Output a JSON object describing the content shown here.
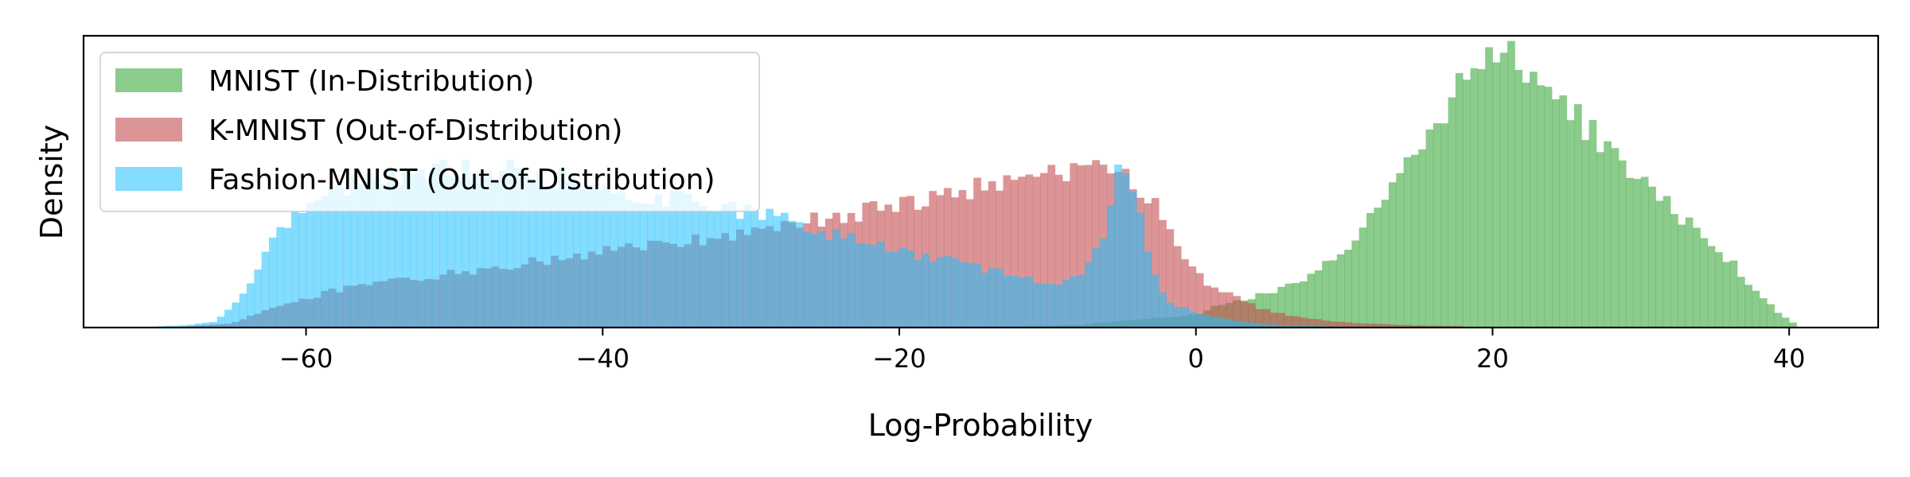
{
  "chart_data": {
    "type": "histogram",
    "xlabel": "Log-Probability",
    "ylabel": "Density",
    "xlim": [
      -75,
      46
    ],
    "ylim": [
      0,
      0.07
    ],
    "x_ticks": [
      -60,
      -40,
      -20,
      0,
      20,
      40
    ],
    "x_tick_labels": [
      "−60",
      "−40",
      "−20",
      "0",
      "20",
      "40"
    ],
    "y_ticks_shown": false,
    "grid": false,
    "legend_position": "upper-left",
    "series": [
      {
        "name": "MNIST (In-Distribution)",
        "color": "#2ca02c",
        "alpha": 0.55,
        "bins": [
          [
            -12,
            0.0003
          ],
          [
            -8,
            0.0006
          ],
          [
            -4,
            0.002
          ],
          [
            0,
            0.003
          ],
          [
            2,
            0.006
          ],
          [
            4,
            0.0075
          ],
          [
            6,
            0.0095
          ],
          [
            8,
            0.0135
          ],
          [
            10,
            0.019
          ],
          [
            12,
            0.027
          ],
          [
            14,
            0.037
          ],
          [
            16,
            0.048
          ],
          [
            18,
            0.058
          ],
          [
            19,
            0.063
          ],
          [
            20,
            0.068
          ],
          [
            21,
            0.066
          ],
          [
            22,
            0.063
          ],
          [
            24,
            0.056
          ],
          [
            26,
            0.049
          ],
          [
            28,
            0.042
          ],
          [
            30,
            0.035
          ],
          [
            32,
            0.029
          ],
          [
            34,
            0.023
          ],
          [
            36,
            0.016
          ],
          [
            38,
            0.008
          ],
          [
            39.5,
            0.003
          ],
          [
            40.5,
            0.0006
          ]
        ]
      },
      {
        "name": "K-MNIST (Out-of-Distribution)",
        "color": "#c44e52",
        "alpha": 0.6,
        "bins": [
          [
            -68,
            0.0003
          ],
          [
            -65,
            0.001
          ],
          [
            -62,
            0.005
          ],
          [
            -58,
            0.009
          ],
          [
            -54,
            0.011
          ],
          [
            -50,
            0.013
          ],
          [
            -46,
            0.015
          ],
          [
            -42,
            0.017
          ],
          [
            -38,
            0.019
          ],
          [
            -34,
            0.021
          ],
          [
            -30,
            0.023
          ],
          [
            -26,
            0.0255
          ],
          [
            -22,
            0.028
          ],
          [
            -18,
            0.031
          ],
          [
            -14,
            0.034
          ],
          [
            -10,
            0.0365
          ],
          [
            -7,
            0.038
          ],
          [
            -5,
            0.036
          ],
          [
            -4,
            0.034
          ],
          [
            -3,
            0.031
          ],
          [
            -2,
            0.026
          ],
          [
            -1,
            0.019
          ],
          [
            0,
            0.013
          ],
          [
            1,
            0.01
          ],
          [
            2,
            0.0085
          ],
          [
            4,
            0.005
          ],
          [
            6,
            0.003
          ],
          [
            8,
            0.002
          ],
          [
            10,
            0.0012
          ],
          [
            14,
            0.0006
          ],
          [
            18,
            0.0003
          ]
        ]
      },
      {
        "name": "Fashion-MNIST (Out-of-Distribution)",
        "color": "#1fbfff",
        "alpha": 0.55,
        "bins": [
          [
            -70,
            0.0003
          ],
          [
            -68,
            0.0006
          ],
          [
            -66,
            0.0015
          ],
          [
            -64,
            0.009
          ],
          [
            -62,
            0.022
          ],
          [
            -60,
            0.029
          ],
          [
            -57,
            0.034
          ],
          [
            -54,
            0.037
          ],
          [
            -50,
            0.038
          ],
          [
            -46,
            0.0375
          ],
          [
            -42,
            0.035
          ],
          [
            -38,
            0.032
          ],
          [
            -34,
            0.03
          ],
          [
            -30,
            0.0275
          ],
          [
            -26,
            0.024
          ],
          [
            -22,
            0.02
          ],
          [
            -18,
            0.017
          ],
          [
            -14,
            0.014
          ],
          [
            -10,
            0.0105
          ],
          [
            -8,
            0.012
          ],
          [
            -6,
            0.024
          ],
          [
            -5,
            0.041
          ],
          [
            -4,
            0.031
          ],
          [
            -3,
            0.014
          ],
          [
            -2,
            0.0065
          ],
          [
            0,
            0.0035
          ],
          [
            2,
            0.002
          ],
          [
            4,
            0.001
          ],
          [
            6,
            0.0005
          ],
          [
            10,
            0.0002
          ]
        ]
      }
    ]
  }
}
